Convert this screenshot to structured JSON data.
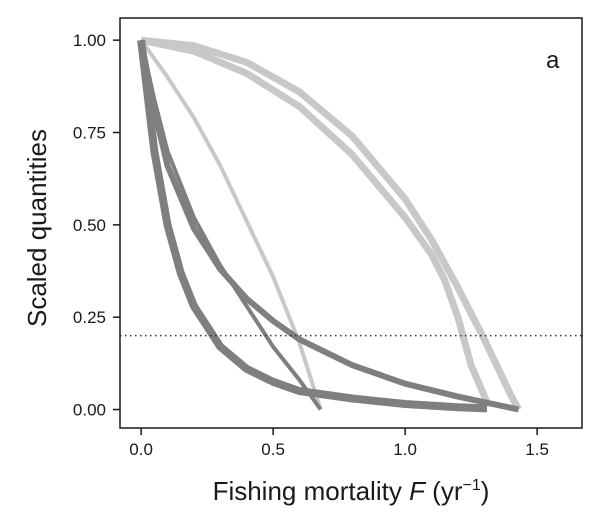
{
  "chart_data": {
    "type": "line",
    "panel_label": "a",
    "xlabel": {
      "prefix": "Fishing mortality ",
      "symbol": "F",
      "unit_open": " (yr",
      "unit_sup": "−1",
      "unit_close": ")"
    },
    "ylabel": "Scaled quantities",
    "xlim": [
      -0.08,
      1.67
    ],
    "ylim": [
      -0.05,
      1.06
    ],
    "xticks": [
      0.0,
      0.5,
      1.0,
      1.5
    ],
    "xtick_labels": [
      "0.0",
      "0.5",
      "1.0",
      "1.5"
    ],
    "yticks": [
      0.0,
      0.25,
      0.5,
      0.75,
      1.0
    ],
    "ytick_labels": [
      "0.00",
      "0.25",
      "0.50",
      "0.75",
      "1.00"
    ],
    "reference_line": {
      "y": 0.2,
      "style": "dotted",
      "color": "#333333"
    },
    "colors": {
      "light": "#c8c8c8",
      "dark": "#7f7f7f",
      "frame": "#1a1a1a"
    },
    "series": [
      {
        "color": "#c8c8c8",
        "width": 7,
        "x": [
          0.0,
          0.2,
          0.4,
          0.6,
          0.8,
          1.0,
          1.1,
          1.2,
          1.3,
          1.4,
          1.43
        ],
        "y": [
          1.0,
          0.985,
          0.94,
          0.86,
          0.74,
          0.57,
          0.46,
          0.33,
          0.19,
          0.04,
          0.0
        ]
      },
      {
        "color": "#c8c8c8",
        "width": 7,
        "x": [
          0.0,
          0.2,
          0.4,
          0.6,
          0.8,
          1.0,
          1.1,
          1.15,
          1.2,
          1.25,
          1.31
        ],
        "y": [
          1.0,
          0.97,
          0.91,
          0.82,
          0.69,
          0.52,
          0.42,
          0.35,
          0.25,
          0.12,
          0.02
        ]
      },
      {
        "color": "#c8c8c8",
        "width": 4,
        "x": [
          0.0,
          0.1,
          0.2,
          0.3,
          0.4,
          0.5,
          0.6,
          0.68
        ],
        "y": [
          1.0,
          0.9,
          0.79,
          0.66,
          0.51,
          0.36,
          0.18,
          0.0
        ]
      },
      {
        "color": "#7f7f7f",
        "width": 8,
        "x": [
          0.0,
          0.05,
          0.1,
          0.15,
          0.2,
          0.3,
          0.4,
          0.5,
          0.6,
          0.8,
          1.0,
          1.2,
          1.31
        ],
        "y": [
          1.0,
          0.7,
          0.5,
          0.37,
          0.28,
          0.17,
          0.11,
          0.075,
          0.05,
          0.03,
          0.015,
          0.006,
          0.003
        ]
      },
      {
        "color": "#7f7f7f",
        "width": 6,
        "x": [
          0.0,
          0.05,
          0.1,
          0.2,
          0.3,
          0.4,
          0.5,
          0.6,
          0.8,
          1.0,
          1.2,
          1.43
        ],
        "y": [
          1.0,
          0.81,
          0.66,
          0.49,
          0.38,
          0.3,
          0.24,
          0.19,
          0.12,
          0.07,
          0.035,
          0.0
        ]
      },
      {
        "color": "#7f7f7f",
        "width": 4,
        "x": [
          0.0,
          0.05,
          0.1,
          0.2,
          0.3,
          0.4,
          0.5,
          0.6,
          0.68
        ],
        "y": [
          1.0,
          0.84,
          0.7,
          0.52,
          0.39,
          0.28,
          0.17,
          0.08,
          0.0
        ]
      }
    ]
  }
}
